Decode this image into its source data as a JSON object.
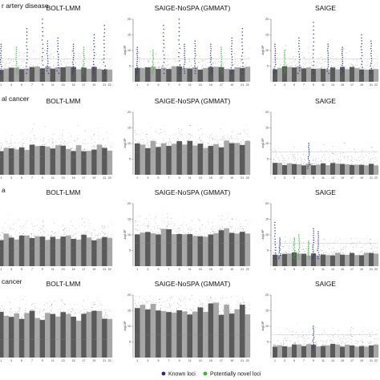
{
  "legend": [
    {
      "label": "Known loci",
      "color": "#1f2a9c"
    },
    {
      "label": "Potentially novel loci",
      "color": "#2bbd2b"
    }
  ],
  "colors": {
    "chrom_dark": "#5a5a5a",
    "chrom_light": "#a7a7a7",
    "threshold": "#8a8a8a"
  },
  "chart_data": {
    "type": "scatter",
    "description_type": "manhattan",
    "columns": [
      "BOLT-LMM",
      "SAIGE-NoSPA (GMMAT)",
      "SAIGE"
    ],
    "ylabel": "-log10P",
    "chromosome_ticks": [
      "1",
      "2",
      "3",
      "4",
      "5",
      "6",
      "7",
      "8",
      "9",
      "10",
      "11",
      "12",
      "13",
      "14",
      "15",
      "16",
      "17",
      "18",
      "19",
      "20",
      "21",
      "22"
    ],
    "rows": [
      {
        "title": "r artery disease",
        "panels": [
          {
            "method": "BOLT-LMM",
            "ylim": [
              0,
              20
            ],
            "yticks": [],
            "threshold": 7.3,
            "baseline": 4.5,
            "peaks": [
              {
                "chr": 1,
                "y": 12,
                "type": "known"
              },
              {
                "chr": 4,
                "y": 11,
                "type": "novel"
              },
              {
                "chr": 6,
                "y": 17,
                "type": "known"
              },
              {
                "chr": 9,
                "y": 20,
                "type": "known"
              },
              {
                "chr": 10,
                "y": 13,
                "type": "known"
              },
              {
                "chr": 12,
                "y": 14,
                "type": "known"
              },
              {
                "chr": 15,
                "y": 12,
                "type": "known"
              },
              {
                "chr": 17,
                "y": 11,
                "type": "novel"
              },
              {
                "chr": 19,
                "y": 15,
                "type": "known"
              },
              {
                "chr": 21,
                "y": 18,
                "type": "known"
              }
            ]
          },
          {
            "method": "SAIGE-NoSPA (GMMAT)",
            "ylim": [
              0,
              20
            ],
            "yticks": [
              "20",
              "15",
              "10",
              "5"
            ],
            "threshold": 7.3,
            "baseline": 4.5,
            "peaks": [
              {
                "chr": 1,
                "y": 11,
                "type": "known"
              },
              {
                "chr": 4,
                "y": 10,
                "type": "novel"
              },
              {
                "chr": 6,
                "y": 18,
                "type": "known"
              },
              {
                "chr": 9,
                "y": 20,
                "type": "known"
              },
              {
                "chr": 10,
                "y": 12,
                "type": "known"
              },
              {
                "chr": 12,
                "y": 13,
                "type": "known"
              },
              {
                "chr": 15,
                "y": 12,
                "type": "known"
              },
              {
                "chr": 17,
                "y": 11,
                "type": "novel"
              },
              {
                "chr": 19,
                "y": 14,
                "type": "known"
              },
              {
                "chr": 21,
                "y": 17,
                "type": "known"
              }
            ]
          },
          {
            "method": "SAIGE",
            "ylim": [
              0,
              20
            ],
            "yticks": [
              "20",
              "15",
              "10",
              "5"
            ],
            "threshold": 7.3,
            "baseline": 4.5,
            "peaks": [
              {
                "chr": 1,
                "y": 12,
                "type": "known"
              },
              {
                "chr": 3,
                "y": 10,
                "type": "novel"
              },
              {
                "chr": 6,
                "y": 14,
                "type": "known"
              },
              {
                "chr": 9,
                "y": 19,
                "type": "known"
              },
              {
                "chr": 12,
                "y": 12,
                "type": "known"
              },
              {
                "chr": 15,
                "y": 11,
                "type": "known"
              },
              {
                "chr": 19,
                "y": 15,
                "type": "known"
              },
              {
                "chr": 21,
                "y": 13,
                "type": "known"
              }
            ]
          }
        ]
      },
      {
        "title": "al cancer",
        "panels": [
          {
            "method": "BOLT-LMM",
            "ylim": [
              0,
              25
            ],
            "yticks": [],
            "threshold": 7.3,
            "baseline": 11,
            "peaks": []
          },
          {
            "method": "SAIGE-NoSPA (GMMAT)",
            "ylim": [
              0,
              20
            ],
            "yticks": [
              "20",
              "15",
              "10",
              "5"
            ],
            "threshold": 7.3,
            "baseline": 10,
            "peaks": []
          },
          {
            "method": "SAIGE",
            "ylim": [
              0,
              20
            ],
            "yticks": [
              "20",
              "15",
              "10",
              "5"
            ],
            "threshold": 7.3,
            "baseline": 3.5,
            "peaks": [
              {
                "chr": 8,
                "y": 10,
                "type": "known"
              }
            ]
          }
        ]
      },
      {
        "title": "a",
        "panels": [
          {
            "method": "BOLT-LMM",
            "ylim": [
              0,
              25
            ],
            "yticks": [],
            "threshold": 7.3,
            "baseline": 12,
            "peaks": []
          },
          {
            "method": "SAIGE-NoSPA (GMMAT)",
            "ylim": [
              0,
              20
            ],
            "yticks": [
              "20",
              "15",
              "10",
              "5"
            ],
            "threshold": 7.3,
            "baseline": 11,
            "peaks": []
          },
          {
            "method": "SAIGE",
            "ylim": [
              0,
              20
            ],
            "yticks": [
              "20",
              "15",
              "10",
              "5"
            ],
            "threshold": 7.3,
            "baseline": 4,
            "peaks": [
              {
                "chr": 1,
                "y": 14,
                "type": "known"
              },
              {
                "chr": 2,
                "y": 9,
                "type": "known"
              },
              {
                "chr": 5,
                "y": 9,
                "type": "novel"
              },
              {
                "chr": 6,
                "y": 10,
                "type": "novel"
              },
              {
                "chr": 8,
                "y": 8,
                "type": "novel"
              },
              {
                "chr": 9,
                "y": 12,
                "type": "known"
              },
              {
                "chr": 10,
                "y": 11,
                "type": "known"
              }
            ]
          }
        ]
      },
      {
        "title": "cancer",
        "panels": [
          {
            "method": "BOLT-LMM",
            "ylim": [
              0,
              25
            ],
            "yticks": [],
            "threshold": 7.3,
            "baseline": 17,
            "peaks": []
          },
          {
            "method": "SAIGE-NoSPA (GMMAT)",
            "ylim": [
              0,
              20
            ],
            "yticks": [
              "20",
              "15",
              "10",
              "5"
            ],
            "threshold": 7.3,
            "baseline": 16,
            "peaks": []
          },
          {
            "method": "SAIGE",
            "ylim": [
              0,
              20
            ],
            "yticks": [
              "20",
              "15",
              "10",
              "5"
            ],
            "threshold": 7.3,
            "baseline": 4,
            "peaks": [
              {
                "chr": 9,
                "y": 10,
                "type": "known"
              }
            ]
          }
        ]
      }
    ]
  }
}
